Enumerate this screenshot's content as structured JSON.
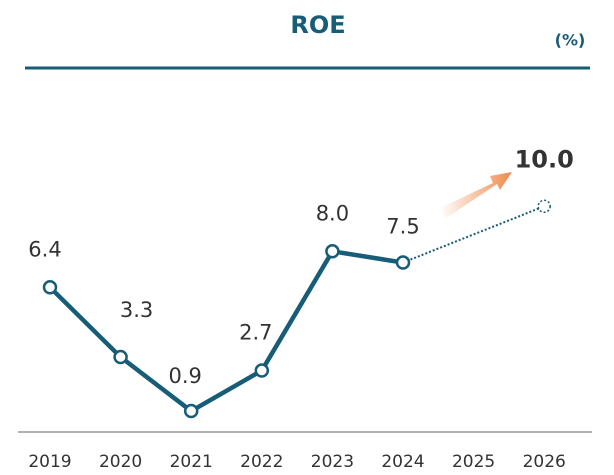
{
  "chart_data": {
    "type": "line",
    "title": "ROE",
    "unit_label": "(%)",
    "categories": [
      "2019",
      "2020",
      "2021",
      "2022",
      "2023",
      "2024",
      "2025",
      "2026"
    ],
    "values": [
      6.4,
      3.3,
      0.9,
      2.7,
      8.0,
      7.5,
      null,
      10.0
    ],
    "value_labels": [
      "6.4",
      "3.3",
      "0.9",
      "2.7",
      "8.0",
      "7.5",
      null,
      "10.0"
    ],
    "color": "#175d78"
  }
}
